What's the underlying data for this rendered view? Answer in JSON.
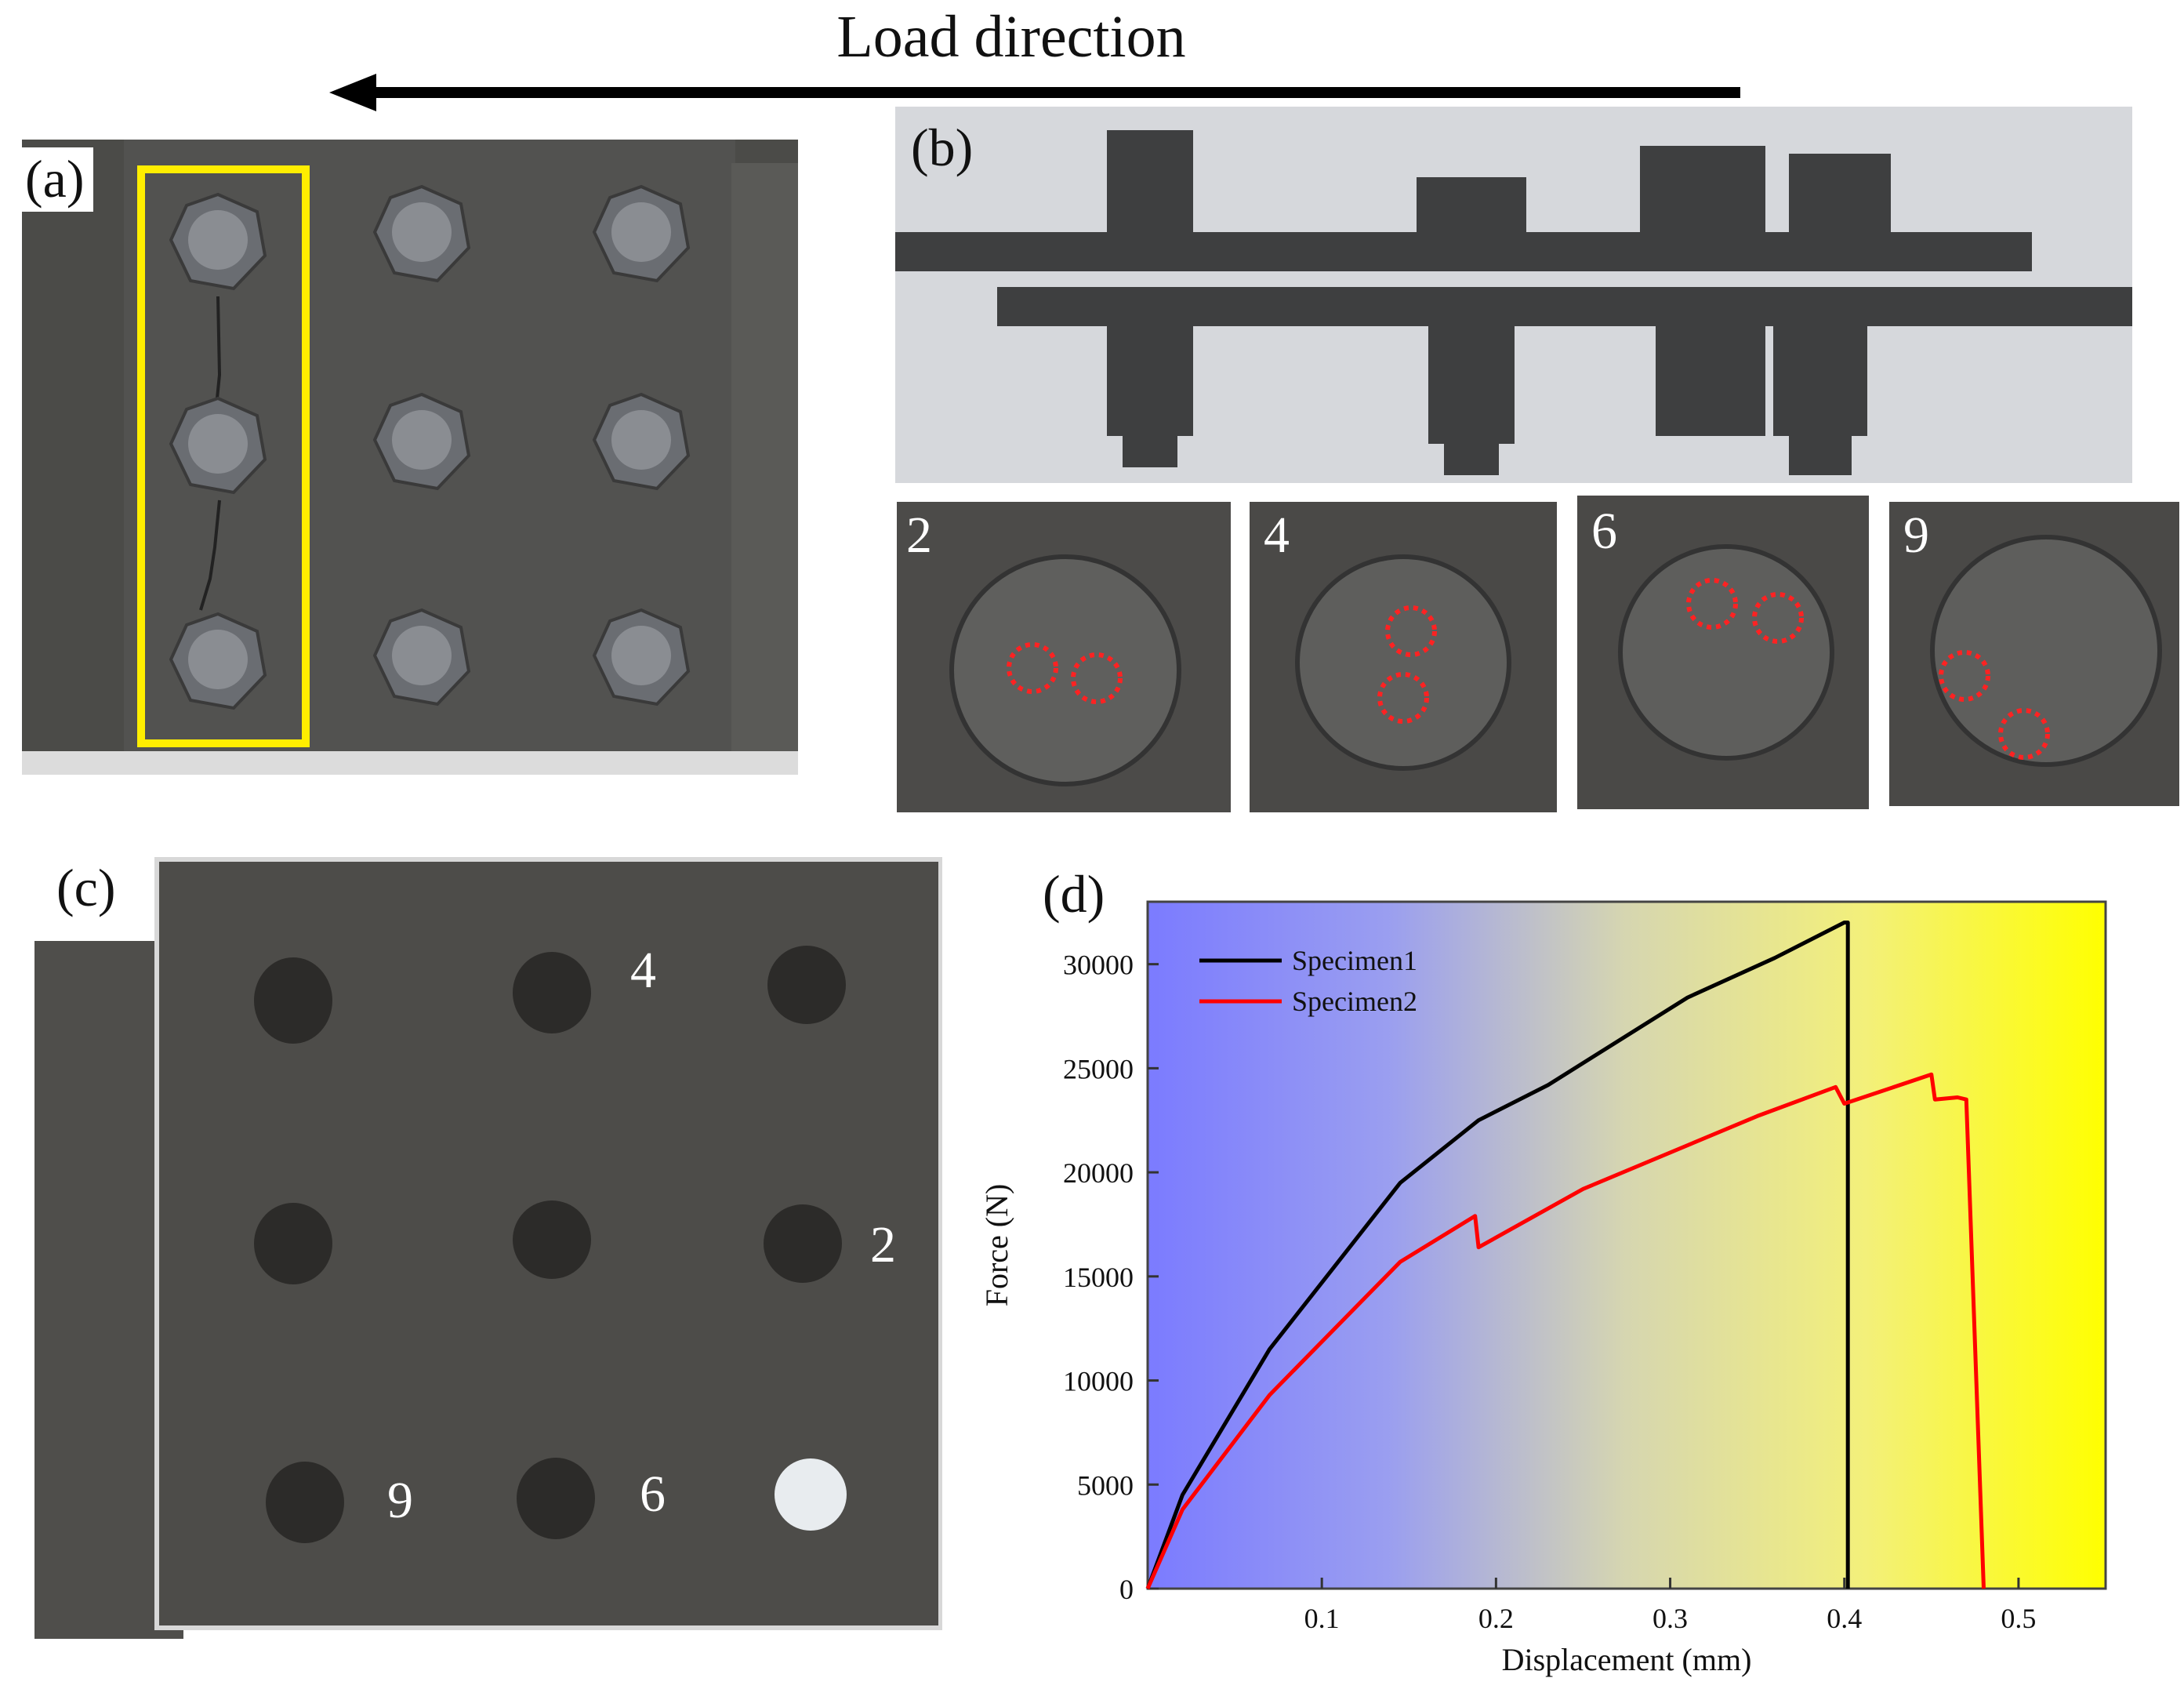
{
  "header": {
    "title": "Load direction"
  },
  "panels": {
    "a": {
      "label": "(a)"
    },
    "b": {
      "label": "(b)",
      "close_ups": [
        {
          "label": "2"
        },
        {
          "label": "4"
        },
        {
          "label": "6"
        },
        {
          "label": "9"
        }
      ]
    },
    "c": {
      "label": "(c)",
      "hole_labels": {
        "four": "4",
        "two": "2",
        "nine": "9",
        "six": "6"
      }
    },
    "d": {
      "label": "(d)"
    }
  },
  "colors": {
    "highlight": "#ffee00",
    "series1": "#000000",
    "series2": "#ff0000",
    "gradient_left": "#7b7bff",
    "gradient_right": "#ffff00"
  },
  "chart_data": {
    "type": "line",
    "xlabel": "Displacement (mm)",
    "ylabel": "Force (N)",
    "xlim": [
      0,
      0.55
    ],
    "ylim": [
      0,
      33000
    ],
    "xticks": [
      "0.1",
      "0.2",
      "0.3",
      "0.4",
      "0.5"
    ],
    "yticks": [
      "0",
      "5000",
      "10000",
      "15000",
      "20000",
      "25000",
      "30000"
    ],
    "legend_position": "top-left",
    "series": [
      {
        "name": "Specimen1",
        "color": "#000000",
        "x": [
          0,
          0.02,
          0.07,
          0.145,
          0.19,
          0.23,
          0.31,
          0.36,
          0.4,
          0.402,
          0.402
        ],
        "y": [
          0,
          4500,
          11500,
          19500,
          22500,
          24200,
          28400,
          30300,
          32000,
          32000,
          0
        ]
      },
      {
        "name": "Specimen2",
        "color": "#ff0000",
        "x": [
          0,
          0.02,
          0.07,
          0.145,
          0.188,
          0.19,
          0.25,
          0.35,
          0.395,
          0.4,
          0.45,
          0.452,
          0.465,
          0.47,
          0.48
        ],
        "y": [
          0,
          3800,
          9300,
          15700,
          17900,
          16400,
          19200,
          22700,
          24100,
          23300,
          24700,
          23500,
          23600,
          23500,
          0
        ]
      }
    ]
  }
}
